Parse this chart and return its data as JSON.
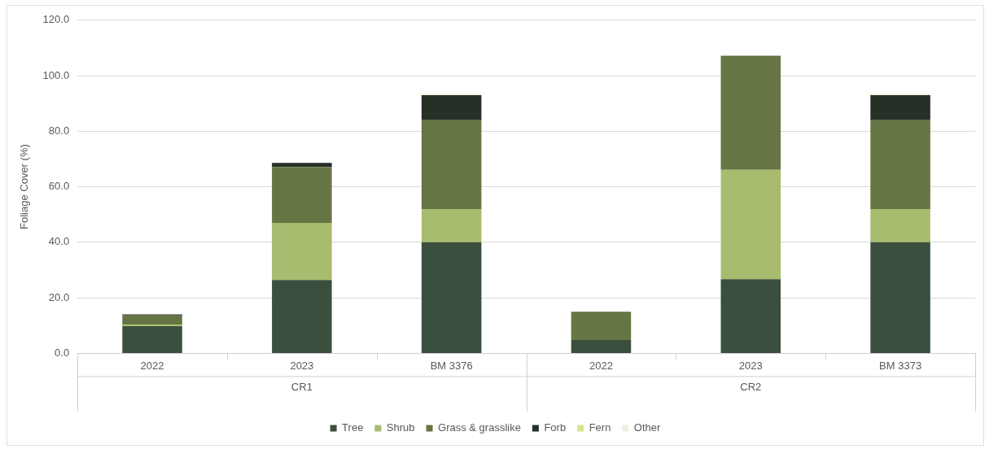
{
  "chart_data": {
    "type": "bar",
    "stacked": true,
    "ylabel": "Foliage Cover (%)",
    "categories": [
      "2022",
      "2023",
      "BM 3376",
      "2022",
      "2023",
      "BM 3373"
    ],
    "annotations": [
      "CR1",
      "CR2"
    ],
    "series": [
      {
        "name": "Tree",
        "color": "#3b4f3e",
        "values": [
          9.8,
          26.4,
          40,
          4.8,
          26.7,
          40
        ]
      },
      {
        "name": "Shrub",
        "color": "#a8bc6f",
        "values": [
          0.5,
          20.6,
          12,
          0,
          39.4,
          12
        ]
      },
      {
        "name": "Grass & grasslike",
        "color": "#667544",
        "values": [
          3.4,
          20.1,
          32,
          10.2,
          41.1,
          32
        ]
      },
      {
        "name": "Forb",
        "color": "#253026",
        "values": [
          0.3,
          1.5,
          9,
          0,
          0,
          9
        ]
      },
      {
        "name": "Fern",
        "color": "#d4e68a",
        "values": [
          0,
          0,
          0,
          0,
          0,
          0
        ]
      },
      {
        "name": "Other",
        "color": "#eef0dc",
        "values": [
          0,
          0,
          0.5,
          0,
          0,
          0.5
        ]
      }
    ],
    "ylim": [
      0,
      120
    ],
    "yticks": [
      {
        "value": 0,
        "label": "0.0"
      },
      {
        "value": 20,
        "label": "20.0"
      },
      {
        "value": 40,
        "label": "40.0"
      },
      {
        "value": 60,
        "label": "60.0"
      },
      {
        "value": 80,
        "label": "80.0"
      },
      {
        "value": 100,
        "label": "100.0"
      },
      {
        "value": 120,
        "label": "120.0"
      }
    ],
    "grid": "y",
    "legend": "bottom"
  }
}
